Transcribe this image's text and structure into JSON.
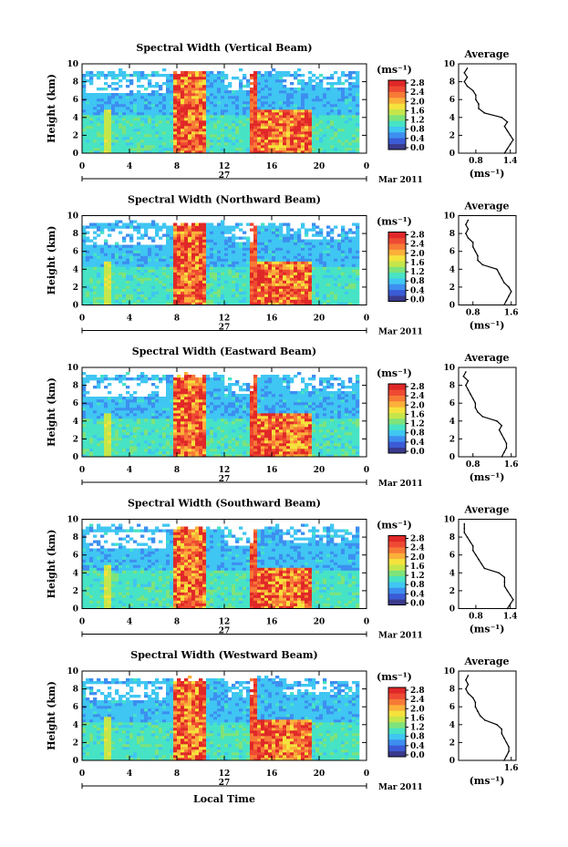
{
  "xlabel": "Local Time",
  "colorbar": {
    "unit": "(ms⁻¹)",
    "ticks": [
      "2.8",
      "2.4",
      "2.0",
      "1.6",
      "1.2",
      "0.8",
      "0.4",
      "0.0"
    ],
    "colors": [
      "#3a3a8c",
      "#3b5bd6",
      "#3d8ef0",
      "#3fc6f2",
      "#46e3c5",
      "#7ee37a",
      "#c5e64a",
      "#f5e23c",
      "#fbb03a",
      "#f77a36",
      "#ee4a33",
      "#e02828"
    ]
  },
  "xaxis": {
    "ticks": [
      "0",
      "4",
      "8",
      "12",
      "16",
      "20",
      "0"
    ],
    "day": "27",
    "month": "Mar 2011"
  },
  "avg_axis": {
    "title": "Average",
    "ylabel": "(ms⁻¹)"
  },
  "chart_data": [
    {
      "type": "heatmap",
      "title": "Spectral Width (Vertical Beam)",
      "ylabel": "Height (km)",
      "x_range": [
        0,
        24
      ],
      "y_range": [
        0,
        10
      ],
      "yticks": [
        "0",
        "2",
        "4",
        "6",
        "8",
        "10"
      ],
      "xticks": [
        "0",
        "4",
        "8",
        "12",
        "16",
        "20",
        "0"
      ],
      "high_width_bands": [
        {
          "start": 7.8,
          "end": 10.5,
          "height_top": 10
        },
        {
          "start": 14.7,
          "end": 19.5,
          "height_top": 5
        }
      ],
      "average_profile": {
        "xticks": [
          "0.8",
          "1.4"
        ],
        "x_range": [
          0.5,
          1.5
        ],
        "height": [
          0,
          0.5,
          1,
          1.5,
          2,
          2.5,
          3,
          3.5,
          4,
          4.5,
          5,
          5.5,
          6,
          6.5,
          7,
          7.5,
          8,
          8.5,
          9,
          9.5
        ],
        "value": [
          1.3,
          1.35,
          1.4,
          1.45,
          1.4,
          1.35,
          1.3,
          1.35,
          1.25,
          0.95,
          0.85,
          0.85,
          0.8,
          0.8,
          0.75,
          0.65,
          0.6,
          0.65,
          0.6,
          0.65
        ]
      }
    },
    {
      "type": "heatmap",
      "title": "Spectral Width (Northward Beam)",
      "ylabel": "Height (km)",
      "x_range": [
        0,
        24
      ],
      "y_range": [
        0,
        10
      ],
      "yticks": [
        "0",
        "2",
        "4",
        "6",
        "8",
        "10"
      ],
      "xticks": [
        "0",
        "4",
        "8",
        "12",
        "16",
        "20",
        "0"
      ],
      "high_width_bands": [
        {
          "start": 7.8,
          "end": 10.5,
          "height_top": 10
        },
        {
          "start": 14.7,
          "end": 19.5,
          "height_top": 5
        }
      ],
      "average_profile": {
        "xticks": [
          "0.8",
          "1.6"
        ],
        "x_range": [
          0.5,
          1.7
        ],
        "height": [
          0,
          0.5,
          1,
          1.5,
          2,
          2.5,
          3,
          3.5,
          4,
          4.5,
          5,
          5.5,
          6,
          6.5,
          7,
          7.5,
          8,
          8.5,
          9,
          9.5
        ],
        "value": [
          1.45,
          1.5,
          1.55,
          1.6,
          1.55,
          1.45,
          1.4,
          1.35,
          1.3,
          1.0,
          0.9,
          0.9,
          0.85,
          0.8,
          0.8,
          0.7,
          0.65,
          0.7,
          0.65,
          0.7
        ]
      }
    },
    {
      "type": "heatmap",
      "title": "Spectral Width (Eastward Beam)",
      "ylabel": "Height (km)",
      "x_range": [
        0,
        24
      ],
      "y_range": [
        0,
        10
      ],
      "yticks": [
        "0",
        "2",
        "4",
        "6",
        "8",
        "10"
      ],
      "xticks": [
        "0",
        "4",
        "8",
        "12",
        "16",
        "20",
        "0"
      ],
      "high_width_bands": [
        {
          "start": 7.8,
          "end": 10.5,
          "height_top": 10
        },
        {
          "start": 14.7,
          "end": 19.5,
          "height_top": 5
        }
      ],
      "average_profile": {
        "xticks": [
          "0.8",
          "1.6"
        ],
        "x_range": [
          0.5,
          1.7
        ],
        "height": [
          0,
          0.5,
          1,
          1.5,
          2,
          2.5,
          3,
          3.5,
          4,
          4.5,
          5,
          5.5,
          6,
          6.5,
          7,
          7.5,
          8,
          8.5,
          9,
          9.5
        ],
        "value": [
          1.4,
          1.45,
          1.5,
          1.5,
          1.45,
          1.4,
          1.35,
          1.4,
          1.3,
          1.0,
          0.9,
          0.85,
          0.85,
          0.8,
          0.75,
          0.7,
          0.65,
          0.7,
          0.6,
          0.65
        ]
      }
    },
    {
      "type": "heatmap",
      "title": "Spectral Width (Southward Beam)",
      "ylabel": "Height (km)",
      "x_range": [
        0,
        24
      ],
      "y_range": [
        0,
        10
      ],
      "yticks": [
        "0",
        "2",
        "4",
        "6",
        "8",
        "10"
      ],
      "xticks": [
        "0",
        "4",
        "8",
        "12",
        "16",
        "20",
        "0"
      ],
      "high_width_bands": [
        {
          "start": 7.8,
          "end": 10.5,
          "height_top": 10
        },
        {
          "start": 14.7,
          "end": 19.5,
          "height_top": 4.7
        }
      ],
      "average_profile": {
        "xticks": [
          "0.8",
          "1.4"
        ],
        "x_range": [
          0.5,
          1.5
        ],
        "height": [
          0,
          0.5,
          1,
          1.5,
          2,
          2.5,
          3,
          3.5,
          4,
          4.5,
          5,
          5.5,
          6,
          6.5,
          7,
          7.5,
          8,
          8.5,
          9,
          9.5
        ],
        "value": [
          1.35,
          1.4,
          1.45,
          1.4,
          1.35,
          1.3,
          1.3,
          1.3,
          1.2,
          0.95,
          0.9,
          0.85,
          0.8,
          0.75,
          0.75,
          0.7,
          0.65,
          0.6,
          0.6,
          0.6
        ]
      }
    },
    {
      "type": "heatmap",
      "title": "Spectral Width (Westward Beam)",
      "ylabel": "Height (km)",
      "x_range": [
        0,
        24
      ],
      "y_range": [
        0,
        10
      ],
      "yticks": [
        "0",
        "2",
        "4",
        "6",
        "8",
        "10"
      ],
      "xticks": [
        "0",
        "4",
        "8",
        "12",
        "16",
        "20",
        "0"
      ],
      "high_width_bands": [
        {
          "start": 7.8,
          "end": 10.5,
          "height_top": 10
        },
        {
          "start": 14.7,
          "end": 19.5,
          "height_top": 4.7
        }
      ],
      "average_profile": {
        "xticks": [
          "1.6"
        ],
        "x_range": [
          0.5,
          1.7
        ],
        "height": [
          0,
          0.5,
          1,
          1.5,
          2,
          2.5,
          3,
          3.5,
          4,
          4.5,
          5,
          5.5,
          6,
          6.5,
          7,
          7.5,
          8,
          8.5,
          9,
          9.5
        ],
        "value": [
          1.45,
          1.5,
          1.55,
          1.55,
          1.5,
          1.45,
          1.4,
          1.4,
          1.3,
          1.05,
          0.95,
          0.9,
          0.85,
          0.85,
          0.8,
          0.7,
          0.65,
          0.7,
          0.65,
          0.7
        ]
      }
    }
  ]
}
